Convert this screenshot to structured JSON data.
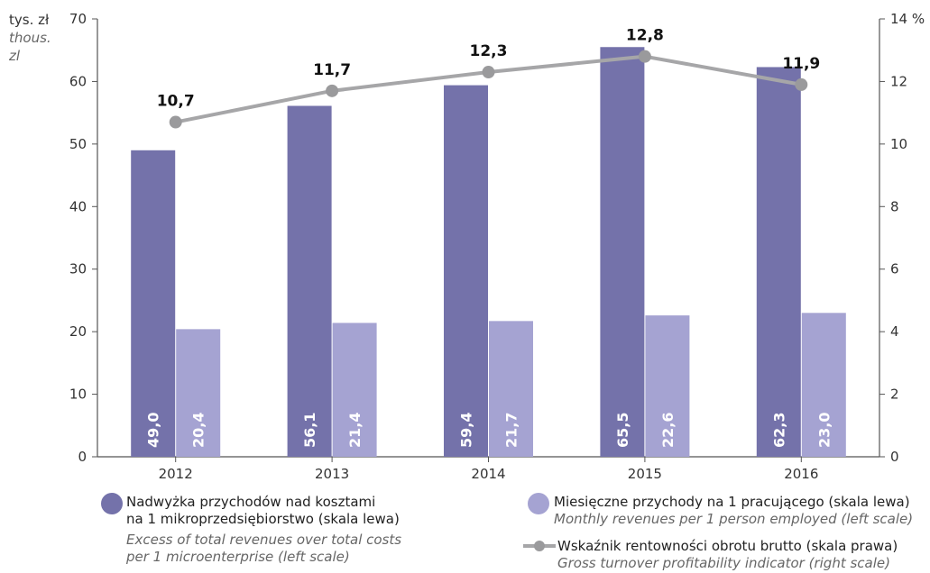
{
  "chart_data": {
    "type": "bar",
    "categories": [
      "2012",
      "2013",
      "2014",
      "2015",
      "2016"
    ],
    "left_axis": {
      "unit_pl": "tys. zł",
      "unit_en_1": "thous.",
      "unit_en_2": "zl",
      "ylim": [
        0,
        70
      ],
      "ticks": [
        "0",
        "10",
        "20",
        "30",
        "40",
        "50",
        "60",
        "70"
      ]
    },
    "right_axis": {
      "unit": "%",
      "ylim": [
        0,
        14
      ],
      "ticks": [
        "0",
        "2",
        "4",
        "6",
        "8",
        "10",
        "12",
        "14"
      ]
    },
    "series": [
      {
        "name": "Nadwyżka przychodów nad kosztami na 1 mikroprzedsiębiorstwo (skala lewa)",
        "values": [
          49.0,
          56.1,
          59.4,
          65.5,
          62.3
        ],
        "labels": [
          "49,0",
          "56,1",
          "59,4",
          "65,5",
          "62,3"
        ],
        "color": "#7472aa",
        "axis": "left"
      },
      {
        "name": "Miesięczne przychody na 1 pracującego (skala lewa)",
        "values": [
          20.4,
          21.4,
          21.7,
          22.6,
          23.0
        ],
        "labels": [
          "20,4",
          "21,4",
          "21,7",
          "22,6",
          "23,0"
        ],
        "color": "#a5a3d2",
        "axis": "left"
      },
      {
        "name": "Wskaźnik rentowności obrotu brutto (skala prawa)",
        "type": "line",
        "values": [
          10.7,
          11.7,
          12.3,
          12.8,
          11.9
        ],
        "labels": [
          "10,7",
          "11,7",
          "12,3",
          "12,8",
          "11,9"
        ],
        "color": "#a6a6a8",
        "axis": "right"
      }
    ],
    "grid": false,
    "legend_position": "bottom"
  },
  "legend": {
    "s1_line1": "Nadwyżka przychodów nad kosztami",
    "s1_line2": "na 1 mikroprzedsiębiorstwo (skala lewa)",
    "s1_en1": "Excess of total revenues over total costs",
    "s1_en2": "per 1 microenterprise (left scale)",
    "s2_pl": "Miesięczne przychody na 1 pracującego (skala lewa)",
    "s2_en": "Monthly revenues per 1 person employed (left scale)",
    "s3_pl": "Wskaźnik rentowności obrotu brutto (skala prawa)",
    "s3_en": "Gross turnover profitability indicator (right scale)"
  },
  "colors": {
    "bar_dark": "#7472aa",
    "bar_light": "#a5a3d2",
    "line": "#a6a6a8",
    "line_marker": "#9a9a9c",
    "axis": "#555555"
  }
}
